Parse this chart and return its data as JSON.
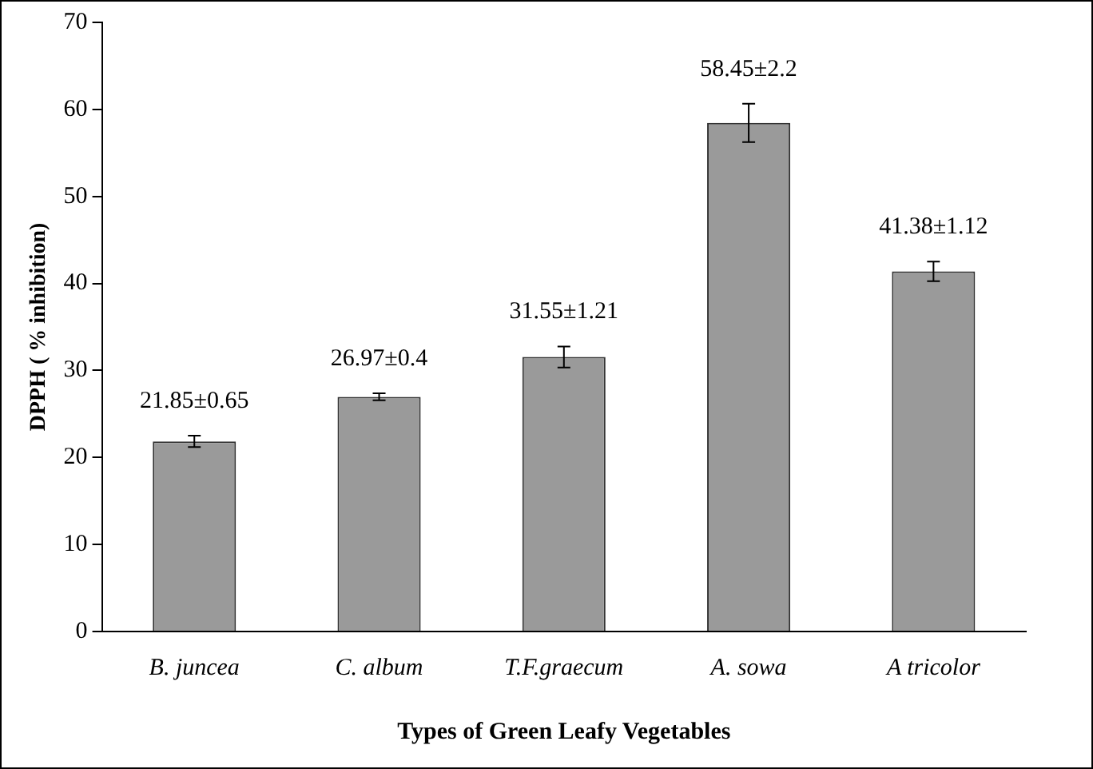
{
  "chart_data": {
    "type": "bar",
    "xlabel": "Types of Green Leafy Vegetables",
    "ylabel": "DPPH ( % inhibition)",
    "categories": [
      "B. juncea",
      "C. album",
      "T.F.graecum",
      "A. sowa",
      "A tricolor"
    ],
    "values": [
      21.85,
      26.97,
      31.55,
      58.45,
      41.38
    ],
    "errors": [
      0.65,
      0.4,
      1.21,
      2.2,
      1.12
    ],
    "value_labels": [
      "21.85±0.65",
      "26.97±0.4",
      "31.55±1.21",
      "58.45±2.2",
      "41.38±1.12"
    ],
    "color": "#9a9a9a",
    "ylim": [
      0,
      70
    ],
    "yticks": [
      0,
      10,
      20,
      30,
      40,
      50,
      60,
      70
    ],
    "grid": false,
    "legend": false
  }
}
